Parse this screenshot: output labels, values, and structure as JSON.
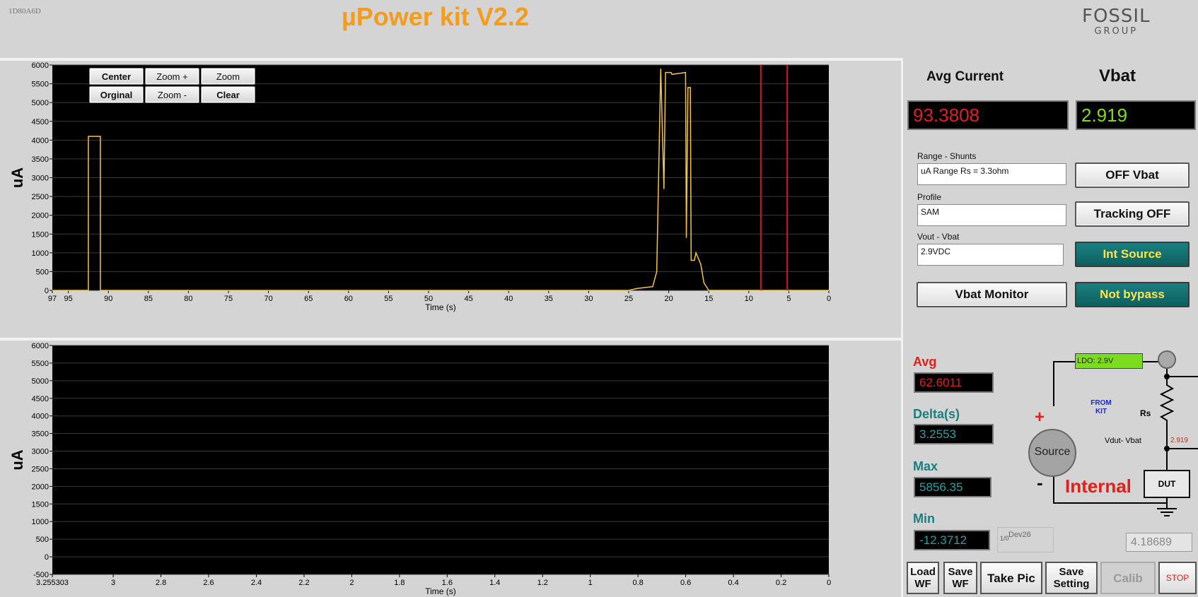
{
  "header": {
    "device_id": "1D80A6D",
    "title": "µPower kit V2.2",
    "logo_main": "FOSSIL",
    "logo_sub": "GROUP"
  },
  "top_chart": {
    "ylabel": "uA",
    "xlabel": "Time (s)",
    "y_ticks": [
      "6000",
      "5500",
      "5000",
      "4500",
      "4000",
      "3500",
      "3000",
      "2500",
      "2000",
      "1500",
      "1000",
      "500",
      "0"
    ],
    "x_ticks": [
      "97",
      "95",
      "90",
      "85",
      "80",
      "75",
      "70",
      "65",
      "60",
      "55",
      "50",
      "45",
      "40",
      "35",
      "30",
      "25",
      "20",
      "15",
      "10",
      "5",
      "0"
    ],
    "buttons": {
      "center": "Center",
      "zoom_plus": "Zoom +",
      "zoom": "Zoom",
      "original": "Orginal",
      "zoom_minus": "Zoom -",
      "clear": "Clear"
    }
  },
  "bottom_chart": {
    "ylabel": "uA",
    "xlabel": "Time (s)",
    "y_ticks": [
      "6000",
      "5500",
      "5000",
      "4500",
      "4000",
      "3500",
      "3000",
      "2500",
      "2000",
      "1500",
      "1000",
      "500",
      "0",
      "-500"
    ],
    "x_ticks": [
      "3.255303",
      "3",
      "2.8",
      "2.6",
      "2.4",
      "2.2",
      "2",
      "1.8",
      "1.6",
      "1.4",
      "1.2",
      "1",
      "0.8",
      "0.6",
      "0.4",
      "0.2",
      "0"
    ]
  },
  "chart_data": [
    {
      "type": "line",
      "xlabel": "Time (s)",
      "ylabel": "uA",
      "xlim": [
        97,
        0
      ],
      "ylim": [
        0,
        6000
      ],
      "grid": true,
      "series": [
        {
          "x": [
            97,
            92.5,
            92.5,
            91,
            91,
            25,
            24,
            22,
            21.5,
            21,
            20.6,
            20.4,
            20.3,
            20,
            19.7,
            19.6,
            17.9,
            17.8,
            17.6,
            17.3,
            17.2,
            16.8,
            16.6,
            16,
            15.6,
            15,
            14,
            13,
            12,
            11,
            10,
            9,
            8,
            7,
            6,
            5,
            4,
            3,
            2,
            1,
            0
          ],
          "values": [
            0,
            0,
            4100,
            4100,
            0,
            0,
            50,
            100,
            500,
            5900,
            2700,
            5800,
            5800,
            5800,
            5800,
            5750,
            5800,
            1400,
            5400,
            5400,
            800,
            800,
            1000,
            700,
            200,
            0,
            0,
            0,
            0,
            0,
            0,
            0,
            0,
            0,
            0,
            0,
            0,
            0,
            0,
            0,
            0
          ]
        }
      ],
      "cursors_x": [
        8.5,
        5.2
      ]
    },
    {
      "type": "line",
      "xlabel": "Time (s)",
      "ylabel": "uA",
      "xlim": [
        3.255303,
        0
      ],
      "ylim": [
        -500,
        6000
      ],
      "grid": true,
      "series": []
    }
  ],
  "right_panel": {
    "avg_current_label": "Avg Current",
    "vbat_label": "Vbat",
    "avg_current_value": "93.3808",
    "vbat_value": "2.919",
    "range_label": "Range - Shunts",
    "range_value": "uA Range  Rs = 3.3ohm",
    "profile_label": "Profile",
    "profile_value": "SAM",
    "vout_label": "Vout  - Vbat",
    "vout_value": "2.9VDC",
    "off_vbat": "OFF Vbat",
    "tracking_off": "Tracking OFF",
    "int_source": "Int Source",
    "not_bypass": "Not bypass",
    "vbat_monitor": "Vbat Monitor",
    "avg_label": "Avg",
    "avg_value": "62.6011",
    "delta_label": "Delta(s)",
    "delta_value": "3.2553",
    "max_label": "Max",
    "max_value": "5856.35",
    "min_label": "Min",
    "min_value": "-12.3712",
    "dev_label": "Dev26",
    "dev_prefix": "1/0",
    "extra_value": "4.18689",
    "colors": {
      "red": "#e0201a",
      "green": "#7ddc1f",
      "teal": "#1b7f7f"
    }
  },
  "diagram": {
    "ldo_label": "LDO: 2.9V",
    "from_kit": "FROM\nKIT",
    "rs_label": "Rs",
    "vdut_label": "Vdut- Vbat",
    "vdut_value": "2.919",
    "source_label": "Source",
    "internal_label": "Internal",
    "dut_label": "DUT",
    "plus": "+",
    "minus": "-"
  },
  "footer": {
    "load_wf": "Load WF",
    "save_wf": "Save WF",
    "take_pic": "Take Pic",
    "save_setting": "Save Setting",
    "calib": "Calib",
    "stop": "STOP"
  }
}
